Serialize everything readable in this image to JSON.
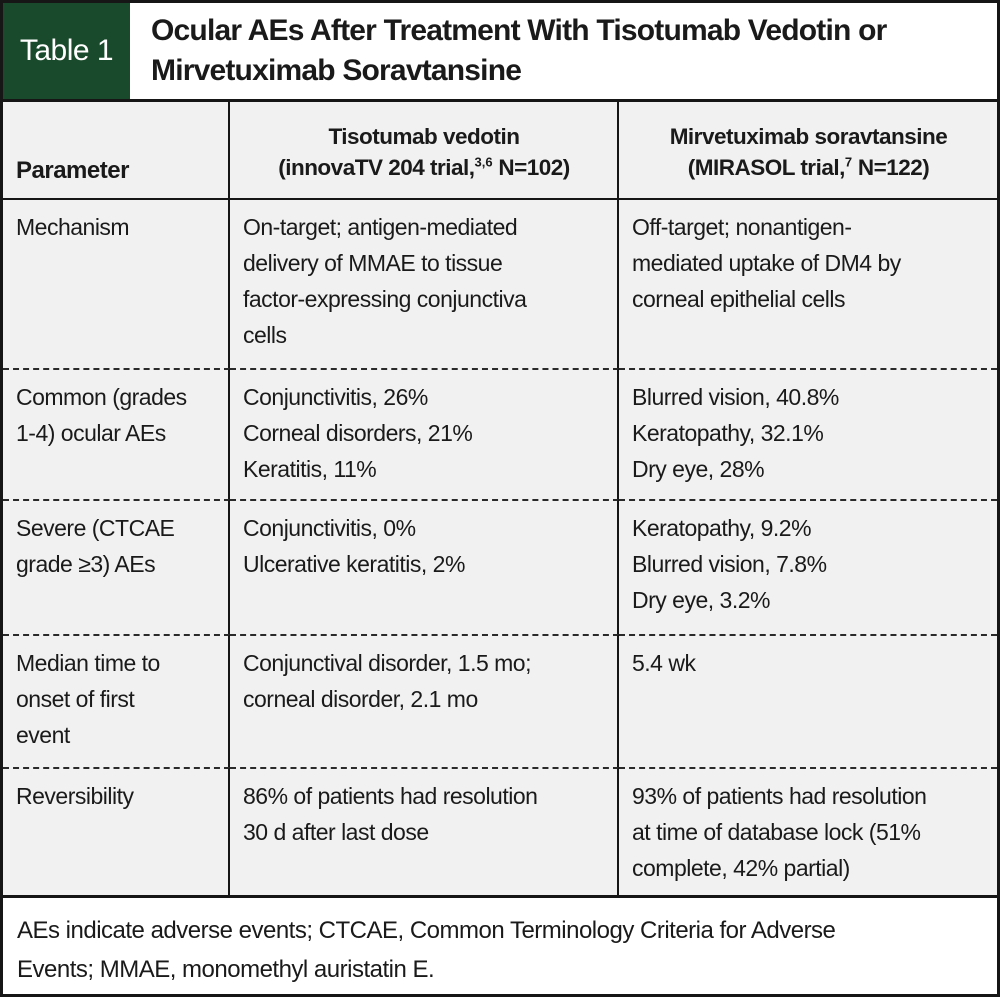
{
  "header": {
    "chip_label": "Table 1",
    "title": "Ocular AEs After Treatment With Tisotumab Vedotin or\nMirvetuximab Soravtansine"
  },
  "columns": {
    "parameter_label": "Parameter",
    "tisotumab": {
      "name": "Tisotumab vedotin",
      "trial_pre": "(innovaTV 204 trial,",
      "trial_sup": "3,6",
      "trial_post": " N=102)"
    },
    "mirvetuximab": {
      "name": "Mirvetuximab soravtansine",
      "trial_pre": "(MIRASOL trial,",
      "trial_sup": "7",
      "trial_post": " N=122)"
    }
  },
  "rows": [
    {
      "parameter": "Mechanism",
      "tisotumab": "On-target; antigen-mediated\ndelivery of MMAE to tissue\nfactor-expressing conjunctiva\ncells",
      "mirvetuximab": "Off-target; nonantigen-\nmediated uptake of DM4 by\ncorneal epithelial cells"
    },
    {
      "parameter": "Common (grades\n1-4) ocular AEs",
      "tisotumab": "Conjunctivitis, 26%\nCorneal disorders, 21%\nKeratitis, 11%",
      "mirvetuximab": "Blurred vision, 40.8%\nKeratopathy, 32.1%\nDry eye, 28%"
    },
    {
      "parameter": "Severe (CTCAE\ngrade ≥3) AEs",
      "tisotumab": "Conjunctivitis, 0%\nUlcerative keratitis, 2%",
      "mirvetuximab": "Keratopathy, 9.2%\nBlurred vision, 7.8%\nDry eye, 3.2%"
    },
    {
      "parameter": "Median time to\nonset of first\nevent",
      "tisotumab": "Conjunctival disorder, 1.5 mo;\ncorneal disorder, 2.1 mo",
      "mirvetuximab": "5.4 wk"
    },
    {
      "parameter": "Reversibility",
      "tisotumab": "86% of patients had resolution\n30 d after last dose",
      "mirvetuximab": "93% of patients had resolution\nat time of database lock (51%\ncomplete, 42% partial)"
    }
  ],
  "footnote": "AEs indicate adverse events; CTCAE, Common Terminology Criteria for Adverse\nEvents; MMAE, monomethyl auristatin E.",
  "colors": {
    "chip_green": "#1a4a2c",
    "cell_background": "#f1f1f1",
    "border_black": "#161616",
    "text": "#1a1a1a"
  }
}
